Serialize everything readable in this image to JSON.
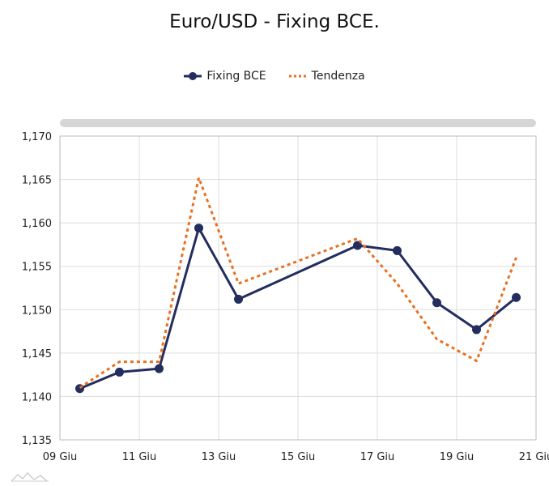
{
  "chart_data": {
    "type": "line",
    "title": "Euro/USD - Fixing BCE.",
    "xlabel": "",
    "ylabel": "",
    "x_range": [
      "2025-06-09",
      "2025-06-21"
    ],
    "x_ticks": [
      {
        "date": "2025-06-09",
        "label": "09 Giu"
      },
      {
        "date": "2025-06-11",
        "label": "11 Giu"
      },
      {
        "date": "2025-06-13",
        "label": "13 Giu"
      },
      {
        "date": "2025-06-15",
        "label": "15 Giu"
      },
      {
        "date": "2025-06-17",
        "label": "17 Giu"
      },
      {
        "date": "2025-06-19",
        "label": "19 Giu"
      },
      {
        "date": "2025-06-21",
        "label": "21 Giu"
      }
    ],
    "ylim": [
      1.135,
      1.17
    ],
    "y_ticks": [
      {
        "value": 1.135,
        "label": "1,135"
      },
      {
        "value": 1.14,
        "label": "1,140"
      },
      {
        "value": 1.145,
        "label": "1,145"
      },
      {
        "value": 1.15,
        "label": "1,150"
      },
      {
        "value": 1.155,
        "label": "1,155"
      },
      {
        "value": 1.16,
        "label": "1,160"
      },
      {
        "value": 1.165,
        "label": "1,165"
      },
      {
        "value": 1.17,
        "label": "1,170"
      }
    ],
    "grid": true,
    "legend_position": "top-center",
    "series": [
      {
        "name": "Fixing BCE",
        "color": "#232d5e",
        "style": "solid-with-markers",
        "points": [
          {
            "date": "2025-06-09T12:00",
            "value": 1.1409
          },
          {
            "date": "2025-06-10T12:00",
            "value": 1.1428
          },
          {
            "date": "2025-06-11T12:00",
            "value": 1.1432
          },
          {
            "date": "2025-06-12T12:00",
            "value": 1.1594
          },
          {
            "date": "2025-06-13T12:00",
            "value": 1.1512
          },
          {
            "date": "2025-06-16T12:00",
            "value": 1.1574
          },
          {
            "date": "2025-06-17T12:00",
            "value": 1.1568
          },
          {
            "date": "2025-06-18T12:00",
            "value": 1.1508
          },
          {
            "date": "2025-06-19T12:00",
            "value": 1.1477
          },
          {
            "date": "2025-06-20T12:00",
            "value": 1.1514
          }
        ]
      },
      {
        "name": "Tendenza",
        "color": "#e8701f",
        "style": "dotted",
        "points": [
          {
            "date": "2025-06-09T12:00",
            "value": 1.141
          },
          {
            "date": "2025-06-10T12:00",
            "value": 1.144
          },
          {
            "date": "2025-06-11T12:00",
            "value": 1.144
          },
          {
            "date": "2025-06-12T12:00",
            "value": 1.1652
          },
          {
            "date": "2025-06-13T12:00",
            "value": 1.153
          },
          {
            "date": "2025-06-16T12:00",
            "value": 1.1582
          },
          {
            "date": "2025-06-17T12:00",
            "value": 1.153
          },
          {
            "date": "2025-06-18T12:00",
            "value": 1.1466
          },
          {
            "date": "2025-06-19T12:00",
            "value": 1.1441
          },
          {
            "date": "2025-06-20T12:00",
            "value": 1.156
          }
        ]
      }
    ]
  },
  "colors": {
    "grid": "#dddddd",
    "axis": "#bbbbbb",
    "scrollbar": "#d6d6d6"
  },
  "icons": {
    "watermark": "chart-logo-icon"
  }
}
